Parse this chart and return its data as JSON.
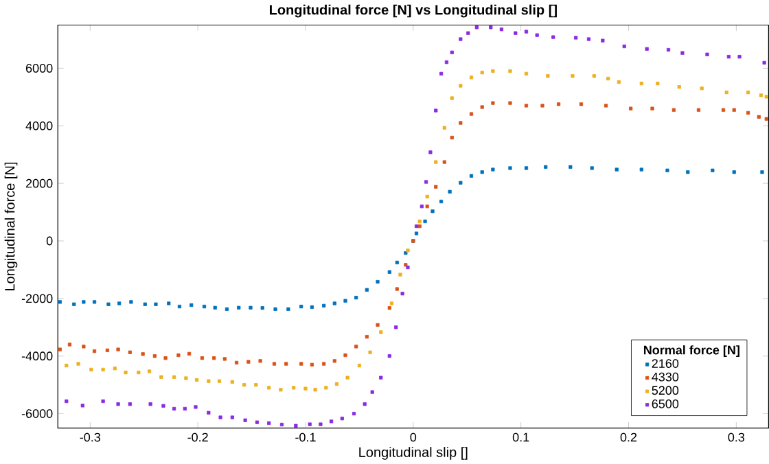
{
  "chart_data": {
    "type": "scatter",
    "title": "Longitudinal force [N] vs Longitudinal slip []",
    "xlabel": "Longitudinal slip []",
    "ylabel": "Longitudinal force [N]",
    "legend_title": "Normal force [N]",
    "xlim": [
      -0.33,
      0.33
    ],
    "ylim": [
      -6500,
      7500
    ],
    "xticks": [
      -0.3,
      -0.2,
      -0.1,
      0,
      0.1,
      0.2,
      0.3
    ],
    "yticks": [
      -6000,
      -4000,
      -2000,
      0,
      2000,
      4000,
      6000
    ],
    "grid": false,
    "legend": "bottom right",
    "marker": "square",
    "series": [
      {
        "name": "2160",
        "color": "#0072bd",
        "x": [
          -0.328,
          -0.315,
          -0.306,
          -0.296,
          -0.283,
          -0.273,
          -0.262,
          -0.249,
          -0.239,
          -0.227,
          -0.217,
          -0.206,
          -0.194,
          -0.184,
          -0.173,
          -0.162,
          -0.151,
          -0.14,
          -0.128,
          -0.116,
          -0.104,
          -0.094,
          -0.083,
          -0.073,
          -0.063,
          -0.053,
          -0.043,
          -0.033,
          -0.022,
          -0.015,
          -0.007,
          0,
          0.003,
          0.011,
          0.018,
          0.026,
          0.034,
          0.044,
          0.054,
          0.064,
          0.074,
          0.09,
          0.105,
          0.123,
          0.146,
          0.166,
          0.189,
          0.212,
          0.236,
          0.255,
          0.278,
          0.298,
          0.324
        ],
        "values": [
          -2120,
          -2200,
          -2120,
          -2120,
          -2200,
          -2170,
          -2120,
          -2200,
          -2200,
          -2170,
          -2280,
          -2230,
          -2280,
          -2320,
          -2370,
          -2320,
          -2320,
          -2330,
          -2370,
          -2370,
          -2280,
          -2300,
          -2250,
          -2170,
          -2080,
          -1970,
          -1700,
          -1420,
          -1080,
          -750,
          -420,
          0,
          260,
          680,
          1030,
          1370,
          1710,
          2020,
          2260,
          2390,
          2480,
          2530,
          2530,
          2570,
          2570,
          2530,
          2480,
          2480,
          2450,
          2390,
          2450,
          2390,
          2390
        ]
      },
      {
        "name": "4330",
        "color": "#d95319",
        "x": [
          -0.328,
          -0.319,
          -0.306,
          -0.296,
          -0.284,
          -0.274,
          -0.263,
          -0.251,
          -0.24,
          -0.23,
          -0.218,
          -0.208,
          -0.196,
          -0.185,
          -0.175,
          -0.164,
          -0.153,
          -0.142,
          -0.129,
          -0.118,
          -0.104,
          -0.094,
          -0.083,
          -0.073,
          -0.063,
          -0.053,
          -0.043,
          -0.033,
          -0.022,
          -0.015,
          -0.007,
          0,
          0.006,
          0.013,
          0.021,
          0.029,
          0.036,
          0.044,
          0.054,
          0.064,
          0.074,
          0.09,
          0.105,
          0.12,
          0.135,
          0.156,
          0.179,
          0.202,
          0.222,
          0.242,
          0.265,
          0.288,
          0.298,
          0.311,
          0.321,
          0.328
        ],
        "values": [
          -3770,
          -3600,
          -3670,
          -3830,
          -3800,
          -3770,
          -3870,
          -3930,
          -4000,
          -4070,
          -3970,
          -3920,
          -4070,
          -4070,
          -4100,
          -4230,
          -4200,
          -4170,
          -4270,
          -4270,
          -4270,
          -4300,
          -4270,
          -4170,
          -3970,
          -3670,
          -3330,
          -2920,
          -2330,
          -1670,
          -830,
          0,
          510,
          1200,
          1880,
          2740,
          3590,
          4100,
          4410,
          4650,
          4790,
          4790,
          4700,
          4700,
          4750,
          4750,
          4700,
          4600,
          4600,
          4550,
          4550,
          4550,
          4550,
          4450,
          4310,
          4240
        ]
      },
      {
        "name": "5200",
        "color": "#edb120",
        "x": [
          -0.322,
          -0.311,
          -0.299,
          -0.288,
          -0.277,
          -0.267,
          -0.255,
          -0.245,
          -0.234,
          -0.222,
          -0.211,
          -0.201,
          -0.19,
          -0.18,
          -0.168,
          -0.157,
          -0.146,
          -0.134,
          -0.123,
          -0.111,
          -0.1,
          -0.091,
          -0.081,
          -0.071,
          -0.061,
          -0.05,
          -0.04,
          -0.03,
          -0.02,
          -0.012,
          -0.005,
          0.006,
          0.013,
          0.021,
          0.029,
          0.036,
          0.044,
          0.054,
          0.064,
          0.074,
          0.09,
          0.105,
          0.125,
          0.148,
          0.168,
          0.181,
          0.191,
          0.212,
          0.227,
          0.247,
          0.268,
          0.291,
          0.311,
          0.323,
          0.328
        ],
        "values": [
          -4330,
          -4270,
          -4470,
          -4470,
          -4430,
          -4570,
          -4570,
          -4530,
          -4730,
          -4730,
          -4770,
          -4830,
          -4870,
          -4870,
          -4900,
          -5000,
          -5000,
          -5100,
          -5170,
          -5100,
          -5130,
          -5170,
          -5100,
          -4970,
          -4750,
          -4330,
          -3870,
          -3170,
          -2170,
          -1170,
          -330,
          680,
          1540,
          2740,
          3930,
          4960,
          5390,
          5680,
          5850,
          5900,
          5900,
          5810,
          5730,
          5730,
          5730,
          5640,
          5520,
          5470,
          5470,
          5350,
          5300,
          5160,
          5160,
          5060,
          5010
        ]
      },
      {
        "name": "6500",
        "color": "#8b2be2",
        "x": [
          -0.322,
          -0.307,
          -0.288,
          -0.274,
          -0.263,
          -0.244,
          -0.232,
          -0.222,
          -0.212,
          -0.202,
          -0.19,
          -0.179,
          -0.168,
          -0.156,
          -0.145,
          -0.134,
          -0.122,
          -0.109,
          -0.096,
          -0.086,
          -0.076,
          -0.066,
          -0.055,
          -0.045,
          -0.038,
          -0.03,
          -0.022,
          -0.016,
          -0.01,
          -0.005,
          0.003,
          0.008,
          0.012,
          0.016,
          0.021,
          0.026,
          0.031,
          0.036,
          0.044,
          0.051,
          0.059,
          0.072,
          0.082,
          0.095,
          0.105,
          0.115,
          0.13,
          0.151,
          0.163,
          0.176,
          0.196,
          0.217,
          0.237,
          0.25,
          0.273,
          0.293,
          0.303,
          0.326
        ],
        "values": [
          -5570,
          -5720,
          -5570,
          -5670,
          -5670,
          -5670,
          -5730,
          -5830,
          -5830,
          -5770,
          -5970,
          -6130,
          -6130,
          -6230,
          -6300,
          -6330,
          -6380,
          -6420,
          -6370,
          -6370,
          -6270,
          -6170,
          -6000,
          -5670,
          -5250,
          -4750,
          -4000,
          -3000,
          -1830,
          -920,
          510,
          1200,
          2050,
          3080,
          4530,
          5810,
          6210,
          6550,
          7010,
          7220,
          7420,
          7420,
          7350,
          7220,
          7270,
          7150,
          7080,
          7060,
          7010,
          6960,
          6760,
          6670,
          6640,
          6530,
          6480,
          6400,
          6400,
          6190
        ]
      }
    ]
  }
}
